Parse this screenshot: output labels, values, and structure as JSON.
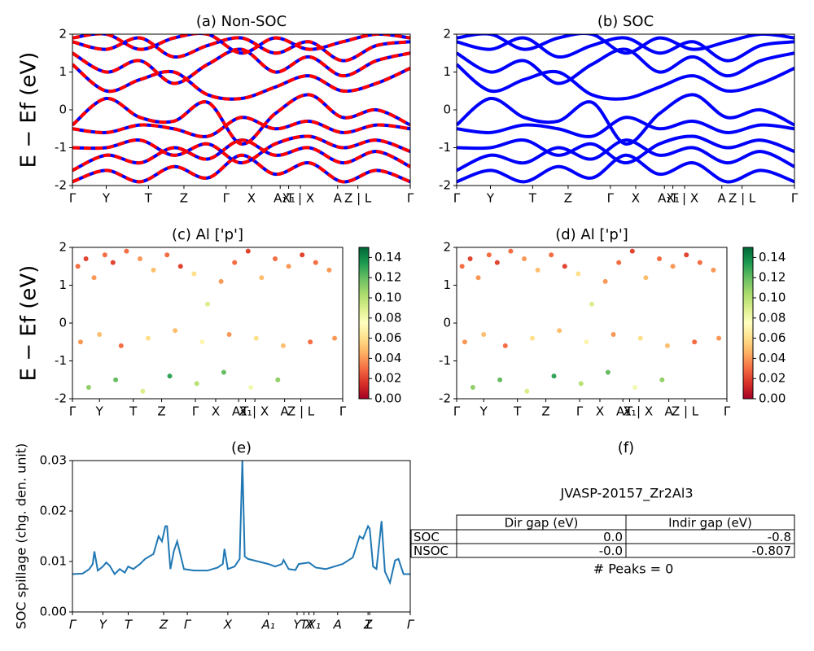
{
  "chart_data": [
    {
      "type": "line",
      "title": "(a) Non-SOC",
      "ylabel": "E − Ef (eV)",
      "color": "#ff0000",
      "underlay_color": "#0000ff",
      "xlim": [
        0,
        1
      ],
      "ylim": [
        -2,
        2
      ],
      "yticks": [
        -2,
        -1,
        0,
        1,
        2
      ],
      "xticks": [
        {
          "value": 0,
          "label": "Γ"
        },
        {
          "value": 0.1,
          "label": "Y"
        },
        {
          "value": 0.225,
          "label": "T"
        },
        {
          "value": 0.33,
          "label": "Z"
        },
        {
          "value": 0.455,
          "label": "Γ"
        },
        {
          "value": 0.53,
          "label": "X"
        },
        {
          "value": 0.615,
          "label": "A₁"
        },
        {
          "value": 0.64,
          "label": "X₁"
        },
        {
          "value": 0.675,
          "label": "T | X"
        },
        {
          "value": 0.785,
          "label": "A"
        },
        {
          "value": 0.845,
          "label": "Z | L"
        },
        {
          "value": 1,
          "label": "Γ"
        }
      ],
      "x": [
        0,
        0.1,
        0.2,
        0.3,
        0.4,
        0.5,
        0.6,
        0.7,
        0.8,
        0.9,
        1
      ],
      "series": [
        {
          "values": [
            -1.9,
            -1.6,
            -1.9,
            -1.5,
            -1.8,
            -1.2,
            -1.7,
            -1.4,
            -1.9,
            -1.6,
            -1.9
          ]
        },
        {
          "values": [
            -1.6,
            -1.2,
            -1.4,
            -1.0,
            -1.3,
            -0.8,
            -1.2,
            -1.0,
            -1.4,
            -1.1,
            -1.5
          ]
        },
        {
          "values": [
            -1.0,
            -1.0,
            -0.8,
            -1.2,
            -0.9,
            -1.4,
            -0.9,
            -0.7,
            -1.0,
            -0.8,
            -1.1
          ]
        },
        {
          "values": [
            -0.5,
            -0.6,
            -0.4,
            -0.5,
            -0.7,
            -0.2,
            -0.5,
            -0.3,
            -0.6,
            -0.4,
            -0.5
          ]
        },
        {
          "values": [
            -0.4,
            0.3,
            -0.2,
            -0.3,
            0.2,
            -0.9,
            -0.1,
            0.4,
            -0.2,
            0.0,
            -0.4
          ]
        },
        {
          "values": [
            1.2,
            0.5,
            0.8,
            1.0,
            0.4,
            0.3,
            0.6,
            0.9,
            0.5,
            0.7,
            1.1
          ]
        },
        {
          "values": [
            1.5,
            1.0,
            1.3,
            0.7,
            1.2,
            1.6,
            1.0,
            1.4,
            0.9,
            1.3,
            1.5
          ]
        },
        {
          "values": [
            1.8,
            1.6,
            1.9,
            1.4,
            1.7,
            1.9,
            1.5,
            1.8,
            1.3,
            1.7,
            1.8
          ]
        },
        {
          "values": [
            1.9,
            2.0,
            1.6,
            1.9,
            2.0,
            1.5,
            1.9,
            1.6,
            1.8,
            2.0,
            1.9
          ]
        }
      ]
    },
    {
      "type": "line",
      "title": "(b) SOC",
      "color": "#0000ff",
      "xlim": [
        0,
        1
      ],
      "ylim": [
        -2,
        2
      ],
      "yticks": [
        -2,
        -1,
        0,
        1,
        2
      ],
      "xticks": [
        {
          "value": 0,
          "label": "Γ"
        },
        {
          "value": 0.1,
          "label": "Y"
        },
        {
          "value": 0.225,
          "label": "T"
        },
        {
          "value": 0.33,
          "label": "Z"
        },
        {
          "value": 0.455,
          "label": "Γ"
        },
        {
          "value": 0.53,
          "label": "X"
        },
        {
          "value": 0.615,
          "label": "A₁"
        },
        {
          "value": 0.64,
          "label": "X₁"
        },
        {
          "value": 0.675,
          "label": "T | X"
        },
        {
          "value": 0.785,
          "label": "A"
        },
        {
          "value": 0.845,
          "label": "Z | L"
        },
        {
          "value": 1,
          "label": "Γ"
        }
      ],
      "x": [
        0,
        0.1,
        0.2,
        0.3,
        0.4,
        0.5,
        0.6,
        0.7,
        0.8,
        0.9,
        1
      ],
      "series": [
        {
          "values": [
            -1.9,
            -1.6,
            -1.9,
            -1.5,
            -1.8,
            -1.2,
            -1.7,
            -1.4,
            -1.9,
            -1.6,
            -1.9
          ]
        },
        {
          "values": [
            -1.6,
            -1.2,
            -1.4,
            -1.0,
            -1.3,
            -0.8,
            -1.2,
            -1.0,
            -1.4,
            -1.1,
            -1.5
          ]
        },
        {
          "values": [
            -1.0,
            -1.0,
            -0.8,
            -1.2,
            -0.9,
            -1.4,
            -0.9,
            -0.7,
            -1.0,
            -0.8,
            -1.1
          ]
        },
        {
          "values": [
            -0.5,
            -0.6,
            -0.4,
            -0.5,
            -0.7,
            -0.2,
            -0.5,
            -0.3,
            -0.6,
            -0.4,
            -0.5
          ]
        },
        {
          "values": [
            -0.4,
            0.3,
            -0.2,
            -0.3,
            0.2,
            -0.9,
            -0.1,
            0.4,
            -0.2,
            0.0,
            -0.4
          ]
        },
        {
          "values": [
            1.2,
            0.5,
            0.8,
            1.0,
            0.4,
            0.3,
            0.6,
            0.9,
            0.5,
            0.7,
            1.1
          ]
        },
        {
          "values": [
            1.5,
            1.0,
            1.3,
            0.7,
            1.2,
            1.6,
            1.0,
            1.4,
            0.9,
            1.3,
            1.5
          ]
        },
        {
          "values": [
            1.8,
            1.6,
            1.9,
            1.4,
            1.7,
            1.9,
            1.5,
            1.8,
            1.3,
            1.7,
            1.8
          ]
        },
        {
          "values": [
            1.9,
            2.0,
            1.6,
            1.9,
            2.0,
            1.5,
            1.9,
            1.6,
            1.8,
            2.0,
            1.9
          ]
        }
      ]
    },
    {
      "type": "scatter",
      "title": "(c)  Al ['p']",
      "ylabel": "E − Ef (eV)",
      "colormap": "RdYlGn",
      "xlim": [
        0,
        1
      ],
      "ylim": [
        -2,
        2
      ],
      "yticks": [
        -2,
        -1,
        0,
        1,
        2
      ],
      "clim": [
        0,
        0.15
      ],
      "cticks": [
        {
          "value": 0,
          "label": "0.00"
        },
        {
          "value": 0.02,
          "label": "0.02"
        },
        {
          "value": 0.04,
          "label": "0.04"
        },
        {
          "value": 0.06,
          "label": "0.06"
        },
        {
          "value": 0.08,
          "label": "0.08"
        },
        {
          "value": 0.1,
          "label": "0.10"
        },
        {
          "value": 0.12,
          "label": "0.12"
        },
        {
          "value": 0.14,
          "label": "0.14"
        }
      ],
      "xticks": [
        {
          "value": 0,
          "label": "Γ"
        },
        {
          "value": 0.1,
          "label": "Y"
        },
        {
          "value": 0.225,
          "label": "T"
        },
        {
          "value": 0.33,
          "label": "Z"
        },
        {
          "value": 0.455,
          "label": "Γ"
        },
        {
          "value": 0.53,
          "label": "X"
        },
        {
          "value": 0.615,
          "label": "A₁"
        },
        {
          "value": 0.64,
          "label": "X₁"
        },
        {
          "value": 0.675,
          "label": "T | X"
        },
        {
          "value": 0.785,
          "label": "A"
        },
        {
          "value": 0.845,
          "label": "Z | L"
        },
        {
          "value": 1,
          "label": "Γ"
        }
      ],
      "x": [
        0.02,
        0.05,
        0.08,
        0.12,
        0.15,
        0.2,
        0.25,
        0.3,
        0.35,
        0.4,
        0.45,
        0.5,
        0.55,
        0.6,
        0.65,
        0.7,
        0.75,
        0.8,
        0.85,
        0.9,
        0.95,
        0.03,
        0.1,
        0.18,
        0.28,
        0.38,
        0.48,
        0.58,
        0.68,
        0.78,
        0.88,
        0.97,
        0.06,
        0.16,
        0.26,
        0.36,
        0.46,
        0.56,
        0.66,
        0.76
      ],
      "values": [
        1.5,
        1.7,
        1.2,
        1.8,
        1.6,
        1.9,
        1.7,
        1.4,
        1.8,
        1.5,
        1.3,
        0.5,
        1.1,
        1.6,
        1.9,
        1.2,
        1.7,
        1.5,
        1.8,
        1.6,
        1.4,
        -0.5,
        -0.3,
        -0.6,
        -0.4,
        -0.2,
        -0.5,
        -0.3,
        -0.4,
        -0.6,
        -0.5,
        -0.4,
        -1.7,
        -1.5,
        -1.8,
        -1.4,
        -1.6,
        -1.3,
        -1.7,
        -1.5
      ],
      "weights": [
        0.03,
        0.02,
        0.04,
        0.03,
        0.02,
        0.03,
        0.04,
        0.05,
        0.03,
        0.02,
        0.06,
        0.09,
        0.04,
        0.03,
        0.02,
        0.05,
        0.03,
        0.04,
        0.02,
        0.03,
        0.04,
        0.04,
        0.05,
        0.03,
        0.06,
        0.05,
        0.07,
        0.04,
        0.06,
        0.05,
        0.03,
        0.04,
        0.11,
        0.12,
        0.09,
        0.13,
        0.1,
        0.12,
        0.08,
        0.11
      ]
    },
    {
      "type": "scatter",
      "title": "(d) Al ['p']",
      "colormap": "RdYlGn",
      "xlim": [
        0,
        1
      ],
      "ylim": [
        -2,
        2
      ],
      "yticks": [
        -2,
        -1,
        0,
        1,
        2
      ],
      "clim": [
        0,
        0.15
      ],
      "cticks": [
        {
          "value": 0,
          "label": "0.00"
        },
        {
          "value": 0.02,
          "label": "0.02"
        },
        {
          "value": 0.04,
          "label": "0.04"
        },
        {
          "value": 0.06,
          "label": "0.06"
        },
        {
          "value": 0.08,
          "label": "0.08"
        },
        {
          "value": 0.1,
          "label": "0.10"
        },
        {
          "value": 0.12,
          "label": "0.12"
        },
        {
          "value": 0.14,
          "label": "0.14"
        }
      ],
      "xticks": [
        {
          "value": 0,
          "label": "Γ"
        },
        {
          "value": 0.1,
          "label": "Y"
        },
        {
          "value": 0.225,
          "label": "T"
        },
        {
          "value": 0.33,
          "label": "Z"
        },
        {
          "value": 0.455,
          "label": "Γ"
        },
        {
          "value": 0.53,
          "label": "X"
        },
        {
          "value": 0.615,
          "label": "A₁"
        },
        {
          "value": 0.64,
          "label": "X₁"
        },
        {
          "value": 0.675,
          "label": "T | X"
        },
        {
          "value": 0.785,
          "label": "A"
        },
        {
          "value": 0.845,
          "label": "Z | L"
        },
        {
          "value": 1,
          "label": "Γ"
        }
      ],
      "x": [
        0.02,
        0.05,
        0.08,
        0.12,
        0.15,
        0.2,
        0.25,
        0.3,
        0.35,
        0.4,
        0.45,
        0.5,
        0.55,
        0.6,
        0.65,
        0.7,
        0.75,
        0.8,
        0.85,
        0.9,
        0.95,
        0.03,
        0.1,
        0.18,
        0.28,
        0.38,
        0.48,
        0.58,
        0.68,
        0.78,
        0.88,
        0.97,
        0.06,
        0.16,
        0.26,
        0.36,
        0.46,
        0.56,
        0.66,
        0.76
      ],
      "values": [
        1.5,
        1.7,
        1.2,
        1.8,
        1.6,
        1.9,
        1.7,
        1.4,
        1.8,
        1.5,
        1.3,
        0.5,
        1.1,
        1.6,
        1.9,
        1.2,
        1.7,
        1.5,
        1.8,
        1.6,
        1.4,
        -0.5,
        -0.3,
        -0.6,
        -0.4,
        -0.2,
        -0.5,
        -0.3,
        -0.4,
        -0.6,
        -0.5,
        -0.4,
        -1.7,
        -1.5,
        -1.8,
        -1.4,
        -1.6,
        -1.3,
        -1.7,
        -1.5
      ],
      "weights": [
        0.03,
        0.02,
        0.04,
        0.03,
        0.02,
        0.03,
        0.04,
        0.05,
        0.03,
        0.02,
        0.06,
        0.09,
        0.04,
        0.03,
        0.02,
        0.05,
        0.03,
        0.04,
        0.02,
        0.03,
        0.04,
        0.04,
        0.05,
        0.03,
        0.06,
        0.05,
        0.07,
        0.04,
        0.06,
        0.05,
        0.03,
        0.04,
        0.11,
        0.12,
        0.09,
        0.13,
        0.1,
        0.12,
        0.08,
        0.11
      ]
    },
    {
      "type": "spillage",
      "title": "(e)",
      "ylabel": "SOC spillage (chg. den. unit)",
      "color": "#1f77b4",
      "xlim": [
        0,
        1
      ],
      "ylim": [
        0,
        0.03
      ],
      "yticks": [
        {
          "value": 0,
          "label": "0.00"
        },
        {
          "value": 0.01,
          "label": "0.01"
        },
        {
          "value": 0.02,
          "label": "0.02"
        },
        {
          "value": 0.03,
          "label": "0.03"
        }
      ],
      "xticks": [
        {
          "value": 0,
          "label": "Γ"
        },
        {
          "value": 0.09,
          "label": "Y"
        },
        {
          "value": 0.165,
          "label": "T"
        },
        {
          "value": 0.27,
          "label": "Z"
        },
        {
          "value": 0.34,
          "label": "Γ"
        },
        {
          "value": 0.46,
          "label": "X"
        },
        {
          "value": 0.58,
          "label": "A₁"
        },
        {
          "value": 0.665,
          "label": "Y"
        },
        {
          "value": 0.685,
          "label": "T"
        },
        {
          "value": 0.7,
          "label": "X"
        },
        {
          "value": 0.715,
          "label": "X₁"
        },
        {
          "value": 0.785,
          "label": "A"
        },
        {
          "value": 0.875,
          "label": "Z"
        },
        {
          "value": 0.88,
          "label": "L"
        },
        {
          "value": 1,
          "label": "Γ"
        }
      ],
      "x": [
        0,
        0.03,
        0.05,
        0.06,
        0.065,
        0.075,
        0.09,
        0.1,
        0.11,
        0.125,
        0.14,
        0.155,
        0.165,
        0.18,
        0.2,
        0.215,
        0.24,
        0.255,
        0.265,
        0.275,
        0.28,
        0.29,
        0.3,
        0.31,
        0.33,
        0.36,
        0.4,
        0.43,
        0.445,
        0.45,
        0.46,
        0.48,
        0.495,
        0.503,
        0.51,
        0.52,
        0.55,
        0.58,
        0.6,
        0.62,
        0.625,
        0.64,
        0.66,
        0.67,
        0.7,
        0.72,
        0.75,
        0.8,
        0.83,
        0.85,
        0.86,
        0.875,
        0.88,
        0.89,
        0.9,
        0.915,
        0.925,
        0.94,
        0.955,
        0.965,
        0.98,
        1
      ],
      "values": [
        0.0075,
        0.0076,
        0.0085,
        0.0095,
        0.012,
        0.0082,
        0.009,
        0.0098,
        0.0092,
        0.0075,
        0.0085,
        0.0078,
        0.009,
        0.0085,
        0.0095,
        0.0105,
        0.0115,
        0.015,
        0.014,
        0.017,
        0.017,
        0.0085,
        0.012,
        0.014,
        0.0085,
        0.0082,
        0.0082,
        0.0088,
        0.0095,
        0.0125,
        0.0085,
        0.009,
        0.0105,
        0.03,
        0.011,
        0.0105,
        0.01,
        0.0095,
        0.009,
        0.0095,
        0.0103,
        0.0085,
        0.0083,
        0.0095,
        0.0098,
        0.0088,
        0.0085,
        0.0095,
        0.0108,
        0.015,
        0.0145,
        0.017,
        0.0165,
        0.009,
        0.0085,
        0.018,
        0.008,
        0.0058,
        0.0102,
        0.0105,
        0.0075,
        0.0075
      ]
    }
  ],
  "table": {
    "title": "(f)",
    "caption": "JVASP-20157_Zr2Al3",
    "columns": [
      "Dir gap (eV)",
      "Indir gap (eV)"
    ],
    "rows": [
      {
        "label": "SOC",
        "cells": [
          "0.0",
          "-0.8"
        ]
      },
      {
        "label": "NSOC",
        "cells": [
          "-0.0",
          "-0.807"
        ]
      }
    ],
    "note": "# Peaks = 0"
  }
}
